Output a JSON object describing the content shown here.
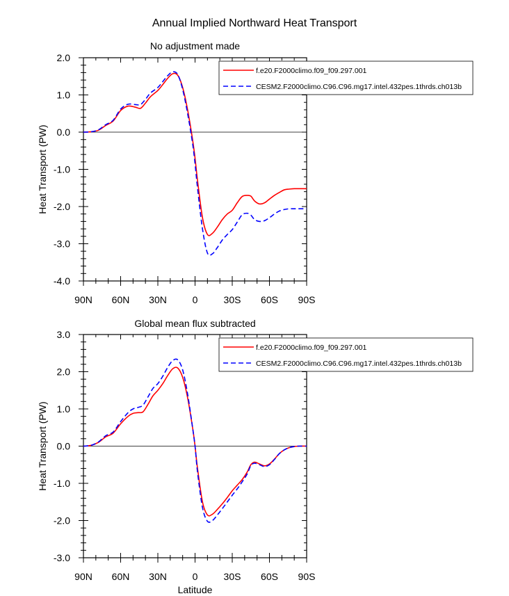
{
  "figure_title": "Annual Implied Northward Heat Transport",
  "colors": {
    "series_1": "#ff0000",
    "series_2": "#0000ff",
    "axis": "#000000",
    "zero_line": "#000000"
  },
  "chart_data": [
    {
      "type": "line",
      "title": "No adjustment made",
      "xlabel": "",
      "ylabel": "Heat Transport (PW)",
      "xlim": [
        90,
        -90
      ],
      "ylim": [
        -4.0,
        2.0
      ],
      "x_ticks": [
        90,
        60,
        30,
        0,
        -30,
        -60,
        -90
      ],
      "x_tick_labels": [
        "90N",
        "60N",
        "30N",
        "0",
        "30S",
        "60S",
        "90S"
      ],
      "y_ticks": [
        2.0,
        1.0,
        0.0,
        -1.0,
        -2.0,
        -3.0,
        -4.0
      ],
      "y_tick_labels": [
        "2.0",
        "1.0",
        "0.0",
        "-1.0",
        "-2.0",
        "-3.0",
        "-4.0"
      ],
      "legend_position": "top-right",
      "series": [
        {
          "name": "f.e20.F2000climo.f09_f09.297.001",
          "style": "solid",
          "x": [
            90,
            84,
            78,
            72,
            66,
            60,
            54,
            48,
            44,
            40,
            36,
            30,
            26,
            22,
            18,
            14,
            10,
            6,
            2,
            0,
            -2,
            -6,
            -10,
            -14,
            -18,
            -22,
            -26,
            -30,
            -34,
            -38,
            -42,
            -45,
            -48,
            -52,
            -56,
            -60,
            -64,
            -68,
            -72,
            -76,
            -80,
            -84,
            -90
          ],
          "values": [
            0.0,
            0.01,
            0.05,
            0.18,
            0.3,
            0.58,
            0.7,
            0.67,
            0.64,
            0.78,
            0.95,
            1.12,
            1.28,
            1.45,
            1.57,
            1.53,
            1.2,
            0.6,
            -0.2,
            -0.7,
            -1.3,
            -2.3,
            -2.75,
            -2.72,
            -2.55,
            -2.35,
            -2.2,
            -2.1,
            -1.9,
            -1.73,
            -1.7,
            -1.72,
            -1.85,
            -1.93,
            -1.9,
            -1.8,
            -1.7,
            -1.62,
            -1.55,
            -1.53,
            -1.52,
            -1.52,
            -1.52
          ]
        },
        {
          "name": "CESM2.F2000climo.C96.C96.mg17.intel.432pes.1thrds.ch013b",
          "style": "dashed",
          "x": [
            90,
            84,
            78,
            72,
            66,
            60,
            54,
            48,
            44,
            40,
            36,
            30,
            26,
            22,
            18,
            14,
            10,
            6,
            2,
            0,
            -2,
            -6,
            -10,
            -14,
            -18,
            -22,
            -26,
            -30,
            -34,
            -38,
            -42,
            -45,
            -48,
            -52,
            -56,
            -60,
            -64,
            -68,
            -72,
            -76,
            -80,
            -84,
            -90
          ],
          "values": [
            0.0,
            0.01,
            0.06,
            0.2,
            0.32,
            0.62,
            0.75,
            0.74,
            0.74,
            0.88,
            1.05,
            1.2,
            1.36,
            1.52,
            1.62,
            1.55,
            1.15,
            0.5,
            -0.3,
            -0.85,
            -1.5,
            -2.6,
            -3.25,
            -3.27,
            -3.1,
            -2.9,
            -2.75,
            -2.62,
            -2.42,
            -2.22,
            -2.18,
            -2.23,
            -2.35,
            -2.4,
            -2.38,
            -2.3,
            -2.2,
            -2.12,
            -2.08,
            -2.06,
            -2.06,
            -2.06,
            -2.06
          ]
        }
      ]
    },
    {
      "type": "line",
      "title": "Global mean flux subtracted",
      "xlabel": "Latitude",
      "ylabel": "Heat Transport (PW)",
      "xlim": [
        90,
        -90
      ],
      "ylim": [
        -3.0,
        3.0
      ],
      "x_ticks": [
        90,
        60,
        30,
        0,
        -30,
        -60,
        -90
      ],
      "x_tick_labels": [
        "90N",
        "60N",
        "30N",
        "0",
        "30S",
        "60S",
        "90S"
      ],
      "y_ticks": [
        3.0,
        2.0,
        1.0,
        0.0,
        -1.0,
        -2.0,
        -3.0
      ],
      "y_tick_labels": [
        "3.0",
        "2.0",
        "1.0",
        "0.0",
        "-1.0",
        "-2.0",
        "-3.0"
      ],
      "legend_position": "top-right",
      "series": [
        {
          "name": "f.e20.F2000climo.f09_f09.297.001",
          "style": "solid",
          "x": [
            90,
            84,
            78,
            72,
            66,
            60,
            54,
            50,
            46,
            42,
            38,
            34,
            30,
            26,
            22,
            18,
            14,
            10,
            6,
            2,
            0,
            -2,
            -6,
            -10,
            -14,
            -18,
            -22,
            -26,
            -30,
            -34,
            -38,
            -42,
            -45,
            -48,
            -52,
            -56,
            -60,
            -64,
            -68,
            -72,
            -76,
            -80,
            -84,
            -90
          ],
          "values": [
            0.0,
            0.02,
            0.1,
            0.25,
            0.35,
            0.6,
            0.8,
            0.88,
            0.9,
            0.92,
            1.12,
            1.35,
            1.5,
            1.68,
            1.9,
            2.08,
            2.1,
            1.85,
            1.3,
            0.5,
            0.0,
            -0.6,
            -1.5,
            -1.85,
            -1.83,
            -1.7,
            -1.55,
            -1.38,
            -1.2,
            -1.05,
            -0.9,
            -0.7,
            -0.5,
            -0.43,
            -0.48,
            -0.53,
            -0.48,
            -0.35,
            -0.2,
            -0.1,
            -0.04,
            -0.01,
            0.0,
            0.0
          ]
        },
        {
          "name": "CESM2.F2000climo.C96.C96.mg17.intel.432pes.1thrds.ch013b",
          "style": "dashed",
          "x": [
            90,
            84,
            78,
            72,
            66,
            60,
            54,
            50,
            46,
            42,
            38,
            34,
            30,
            26,
            22,
            18,
            14,
            10,
            6,
            2,
            0,
            -2,
            -6,
            -10,
            -14,
            -18,
            -22,
            -26,
            -30,
            -34,
            -38,
            -42,
            -45,
            -48,
            -52,
            -56,
            -60,
            -64,
            -68,
            -72,
            -76,
            -80,
            -84,
            -90
          ],
          "values": [
            0.0,
            0.02,
            0.11,
            0.28,
            0.38,
            0.66,
            0.9,
            1.0,
            1.04,
            1.1,
            1.32,
            1.55,
            1.68,
            1.88,
            2.12,
            2.3,
            2.32,
            2.05,
            1.4,
            0.5,
            0.0,
            -0.7,
            -1.65,
            -2.02,
            -2.0,
            -1.85,
            -1.68,
            -1.5,
            -1.32,
            -1.15,
            -0.96,
            -0.75,
            -0.52,
            -0.46,
            -0.5,
            -0.55,
            -0.5,
            -0.36,
            -0.2,
            -0.1,
            -0.04,
            -0.01,
            0.0,
            0.0
          ]
        }
      ]
    }
  ]
}
